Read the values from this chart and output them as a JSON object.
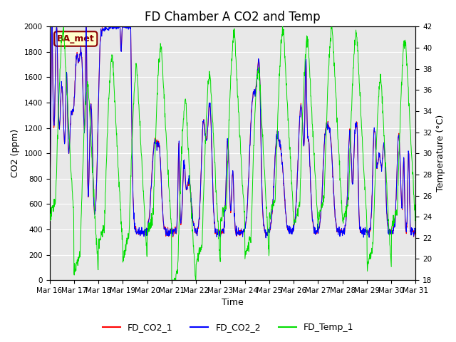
{
  "title": "FD Chamber A CO2 and Temp",
  "xlabel": "Time",
  "ylabel_left": "CO2 (ppm)",
  "ylabel_right": "Temperature (°C)",
  "ylim_left": [
    0,
    2000
  ],
  "ylim_right": [
    18,
    42
  ],
  "legend_labels": [
    "FD_CO2_1",
    "FD_CO2_2",
    "FD_Temp_1"
  ],
  "line_colors": {
    "co2_1": "red",
    "co2_2": "blue",
    "temp_1": "#00dd00"
  },
  "annotation_text": "BA_met",
  "annotation_bg": "#ffffcc",
  "annotation_border": "#8b0000",
  "plot_bg": "#e8e8e8",
  "fig_bg": "#ffffff",
  "title_fontsize": 12,
  "axis_label_fontsize": 9,
  "tick_fontsize": 7.5,
  "legend_fontsize": 9
}
